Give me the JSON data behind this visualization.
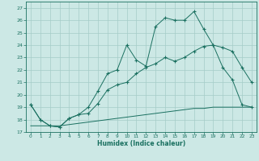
{
  "xlabel": "Humidex (Indice chaleur)",
  "bg_color": "#cce8e5",
  "line_color": "#1a7060",
  "grid_color": "#a5ccc8",
  "xlim": [
    -0.5,
    23.5
  ],
  "ylim": [
    17,
    27.5
  ],
  "yticks": [
    17,
    18,
    19,
    20,
    21,
    22,
    23,
    24,
    25,
    26,
    27
  ],
  "xticks": [
    0,
    1,
    2,
    3,
    4,
    5,
    6,
    7,
    8,
    9,
    10,
    11,
    12,
    13,
    14,
    15,
    16,
    17,
    18,
    19,
    20,
    21,
    22,
    23
  ],
  "hours": [
    0,
    1,
    2,
    3,
    4,
    5,
    6,
    7,
    8,
    9,
    10,
    11,
    12,
    13,
    14,
    15,
    16,
    17,
    18,
    19,
    20,
    21,
    22,
    23
  ],
  "line_main": [
    19.2,
    18.0,
    17.5,
    17.4,
    18.1,
    18.4,
    18.5,
    19.3,
    20.4,
    20.8,
    21.0,
    21.7,
    22.2,
    22.5,
    23.0,
    22.7,
    23.0,
    23.5,
    23.9,
    24.0,
    23.8,
    23.5,
    22.2,
    21.0
  ],
  "line_peak": [
    19.2,
    18.0,
    17.5,
    17.4,
    18.1,
    18.4,
    19.0,
    20.3,
    21.7,
    22.0,
    24.0,
    22.8,
    22.3,
    25.5,
    26.2,
    26.0,
    26.0,
    26.7,
    25.3,
    24.0,
    22.2,
    21.2,
    19.2,
    19.0
  ],
  "line_base": [
    17.5,
    17.5,
    17.5,
    17.5,
    17.6,
    17.7,
    17.8,
    17.9,
    18.0,
    18.1,
    18.2,
    18.3,
    18.4,
    18.5,
    18.6,
    18.7,
    18.8,
    18.9,
    18.9,
    19.0,
    19.0,
    19.0,
    19.0,
    19.0
  ]
}
